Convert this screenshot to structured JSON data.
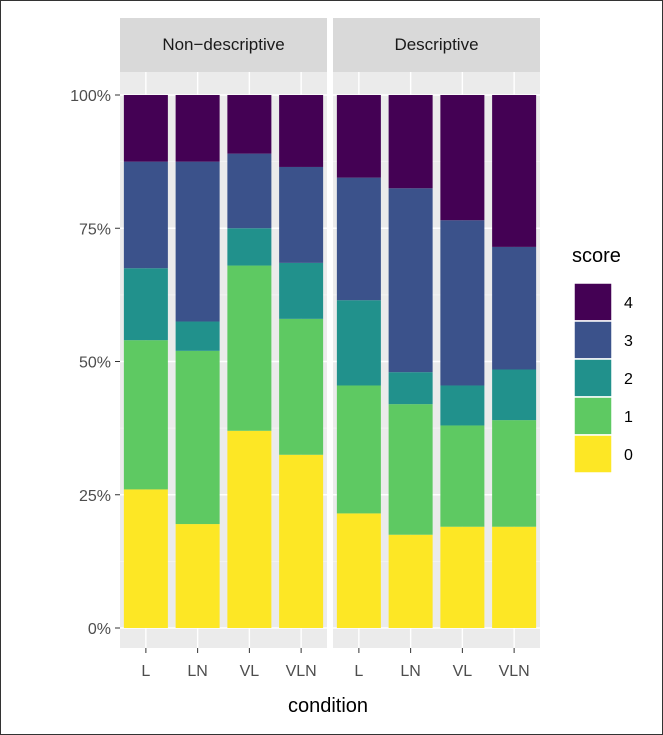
{
  "chart_data": {
    "type": "bar",
    "stacked": true,
    "percent_axis": true,
    "facets": [
      "Non−descriptive",
      "Descriptive"
    ],
    "categories": [
      "L",
      "LN",
      "VL",
      "VLN"
    ],
    "xlabel": "condition",
    "ylabel": "",
    "ylim": [
      0,
      1
    ],
    "y_ticks": [
      0,
      0.25,
      0.5,
      0.75,
      1
    ],
    "y_tick_labels": [
      "0%",
      "25%",
      "50%",
      "75%",
      "100%"
    ],
    "legend": {
      "title": "score",
      "position": "right",
      "entries": [
        "4",
        "3",
        "2",
        "1",
        "0"
      ]
    },
    "colors": {
      "0": "#fde725",
      "1": "#5ec962",
      "2": "#21918c",
      "3": "#3b528b",
      "4": "#440154"
    },
    "panel_background": "#ebebeb",
    "grid": true,
    "series": {
      "Non−descriptive": [
        {
          "name": "0",
          "values": [
            0.26,
            0.195,
            0.37,
            0.325
          ]
        },
        {
          "name": "1",
          "values": [
            0.28,
            0.325,
            0.31,
            0.255
          ]
        },
        {
          "name": "2",
          "values": [
            0.135,
            0.055,
            0.07,
            0.105
          ]
        },
        {
          "name": "3",
          "values": [
            0.2,
            0.3,
            0.14,
            0.18
          ]
        },
        {
          "name": "4",
          "values": [
            0.125,
            0.125,
            0.11,
            0.135
          ]
        }
      ],
      "Descriptive": [
        {
          "name": "0",
          "values": [
            0.215,
            0.175,
            0.19,
            0.19
          ]
        },
        {
          "name": "1",
          "values": [
            0.24,
            0.245,
            0.19,
            0.2
          ]
        },
        {
          "name": "2",
          "values": [
            0.16,
            0.06,
            0.075,
            0.095
          ]
        },
        {
          "name": "3",
          "values": [
            0.23,
            0.345,
            0.31,
            0.23
          ]
        },
        {
          "name": "4",
          "values": [
            0.155,
            0.175,
            0.235,
            0.285
          ]
        }
      ]
    }
  }
}
